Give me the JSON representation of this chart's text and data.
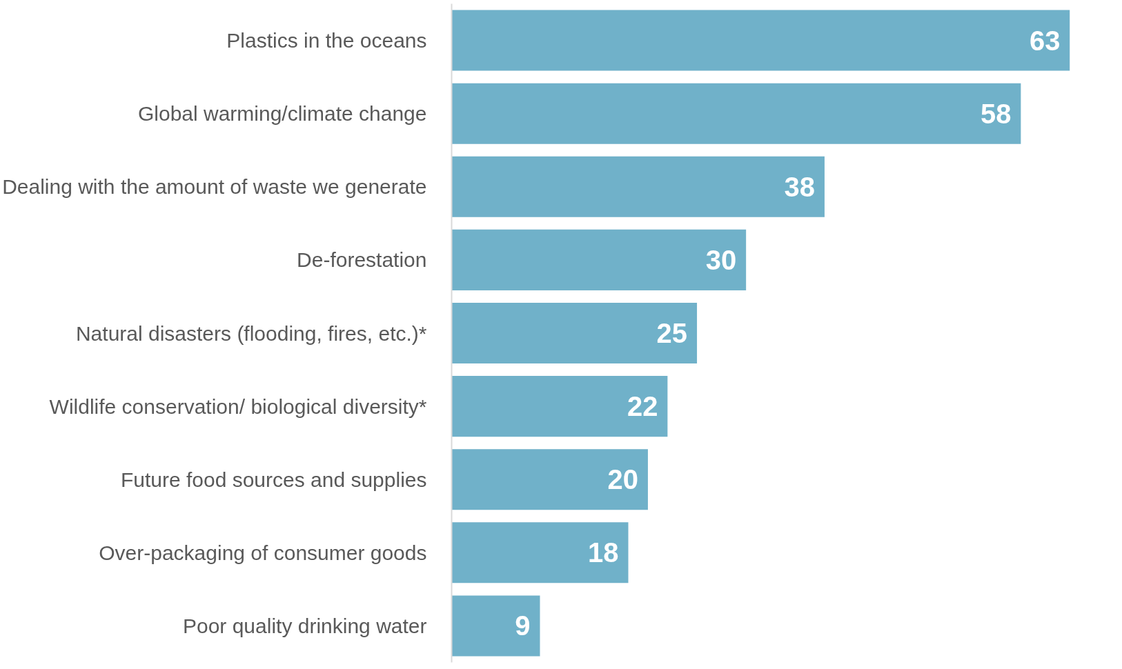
{
  "chart_data": {
    "type": "bar",
    "orientation": "horizontal",
    "categories": [
      "Plastics in the oceans",
      "Global warming/climate change",
      "Dealing with the amount of waste we generate",
      "De-forestation",
      "Natural disasters (flooding, fires, etc.)*",
      "Wildlife conservation/ biological diversity*",
      "Future food sources and supplies",
      "Over-packaging of consumer goods",
      "Poor quality drinking water"
    ],
    "values": [
      63,
      58,
      38,
      30,
      25,
      22,
      20,
      18,
      9
    ],
    "color": "#70b1c9",
    "xlim": [
      0,
      63
    ],
    "data_labels": true,
    "tick_labels": "y"
  }
}
